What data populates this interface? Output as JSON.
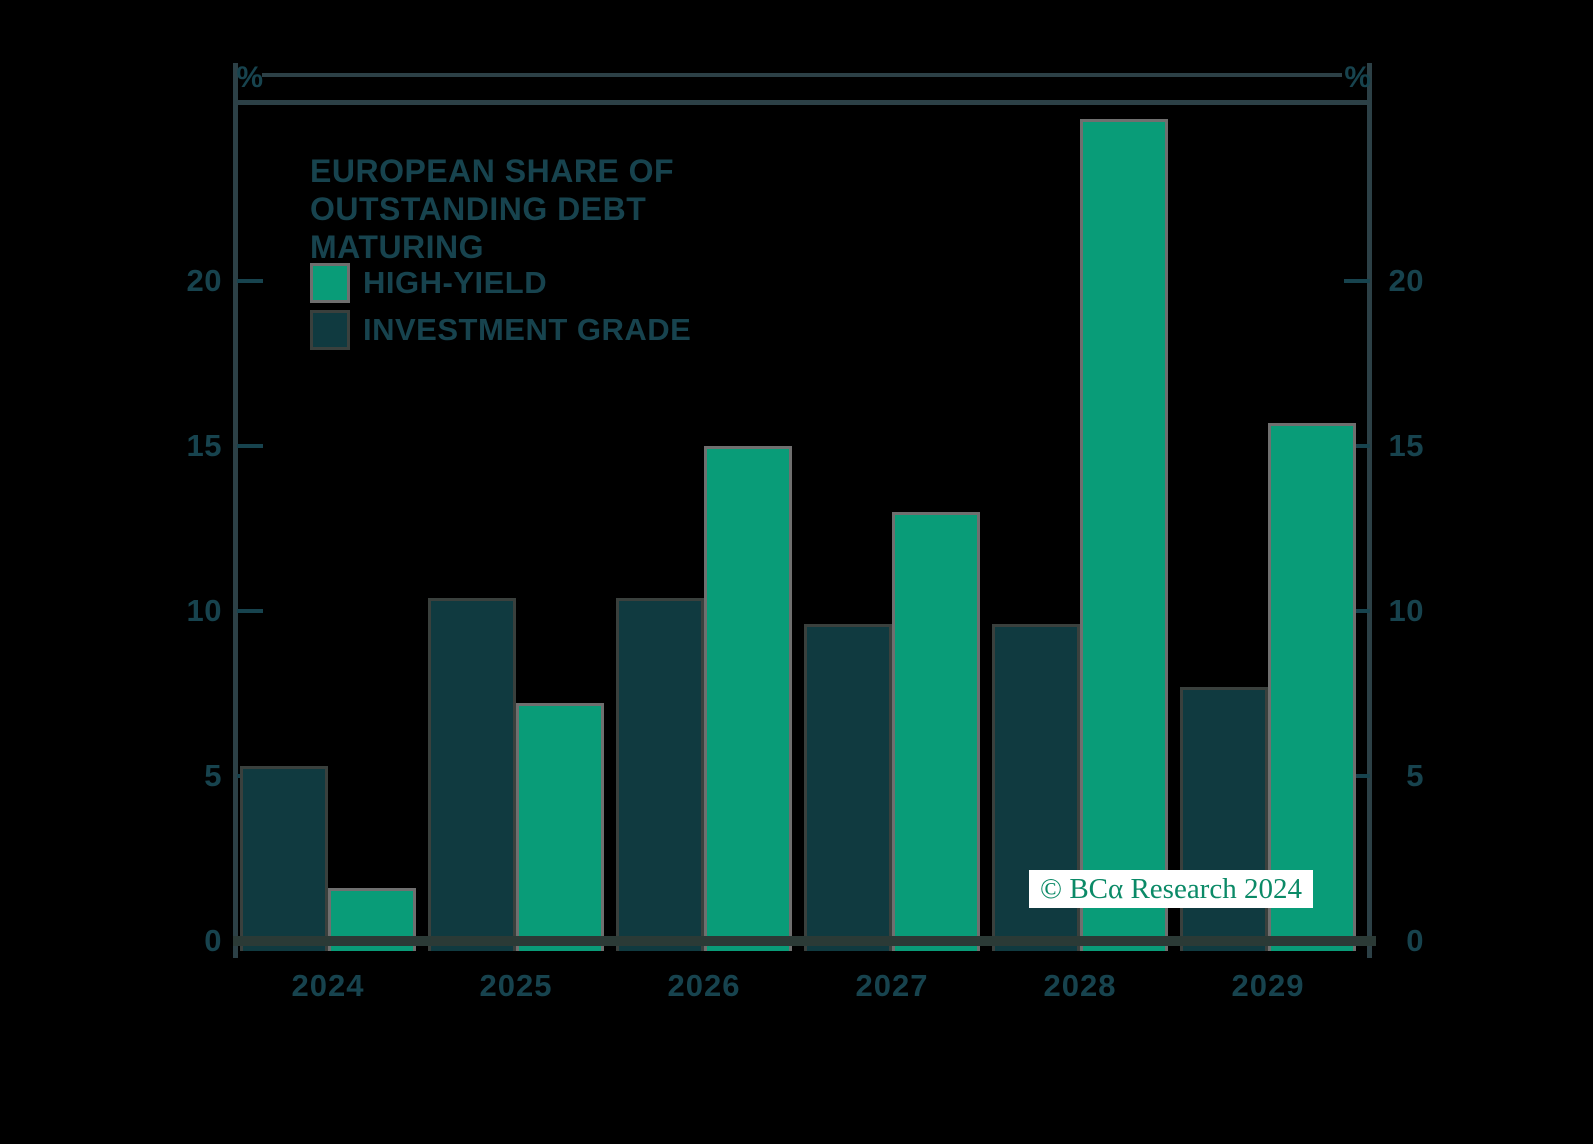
{
  "chart_data": {
    "type": "bar",
    "title_lines": [
      "EUROPEAN SHARE OF",
      "OUTSTANDING DEBT",
      "MATURING"
    ],
    "categories": [
      "2024",
      "2025",
      "2026",
      "2027",
      "2028",
      "2029"
    ],
    "series": [
      {
        "name": "HIGH-YIELD",
        "color": "#099C78",
        "border_color": "#6F6F6F",
        "values": [
          1.6,
          7.2,
          15.0,
          13.0,
          24.9,
          15.7
        ]
      },
      {
        "name": "INVESTMENT GRADE",
        "color": "#103A40",
        "border_color": "#3A403D",
        "values": [
          5.3,
          10.4,
          10.4,
          9.6,
          9.6,
          7.7
        ]
      }
    ],
    "y_ticks": [
      0,
      5,
      10,
      15,
      20
    ],
    "ylim": [
      0,
      25.4
    ],
    "axes": {
      "left_unit": "%",
      "right_unit": "%"
    },
    "grid": false,
    "legend_position": "top-left-inside"
  },
  "watermark": {
    "text": "© BCα Research 2024",
    "text_color": "#0B8A67",
    "background": "#FFFFFF"
  },
  "colors": {
    "background": "#000000",
    "label": "#17434E",
    "spine": "#2C4046",
    "baseline": "#2B3A36"
  }
}
